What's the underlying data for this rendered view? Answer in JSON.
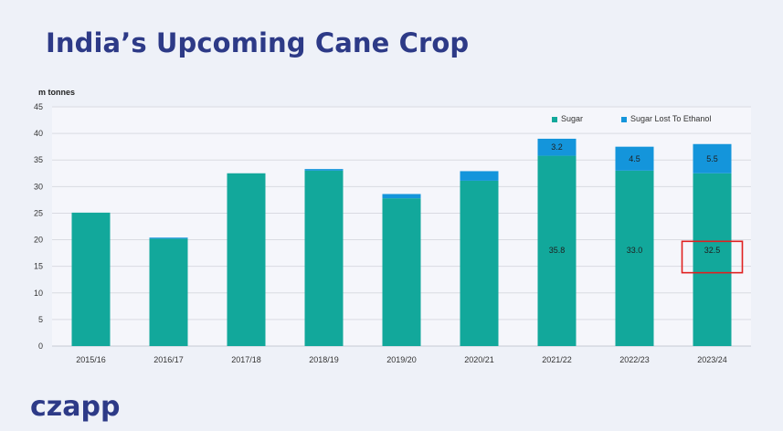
{
  "page": {
    "title": "India’s Upcoming Cane Crop",
    "brand": "czapp"
  },
  "colors": {
    "sugar": "#12a89b",
    "ethanol": "#1495db",
    "highlight": "#e02020",
    "title": "#2d3a87",
    "grid": "#d9dbe2"
  },
  "chart_data": {
    "type": "bar",
    "stacked": true,
    "title": "",
    "ylabel": "m tonnes",
    "xlabel": "",
    "ylim": [
      0,
      45
    ],
    "yticks": [
      0,
      5,
      10,
      15,
      20,
      25,
      30,
      35,
      40,
      45
    ],
    "grid": true,
    "legend_position": "top-right",
    "categories": [
      "2015/16",
      "2016/17",
      "2017/18",
      "2018/19",
      "2019/20",
      "2020/21",
      "2021/22",
      "2022/23",
      "2023/24"
    ],
    "series": [
      {
        "name": "Sugar",
        "values": [
          25.1,
          20.2,
          32.5,
          33.0,
          27.8,
          31.1,
          35.8,
          33.0,
          32.5
        ],
        "labels": [
          "",
          "",
          "",
          "",
          "",
          "",
          "35.8",
          "33.0",
          "32.5"
        ]
      },
      {
        "name": "Sugar Lost To Ethanol",
        "values": [
          0,
          0.2,
          0,
          0.3,
          0.8,
          1.8,
          3.2,
          4.5,
          5.5
        ],
        "labels": [
          "",
          "",
          "",
          "",
          "",
          "",
          "3.2",
          "4.5",
          "5.5"
        ]
      }
    ],
    "highlight": {
      "category": "2023/24",
      "series": "Sugar"
    }
  }
}
